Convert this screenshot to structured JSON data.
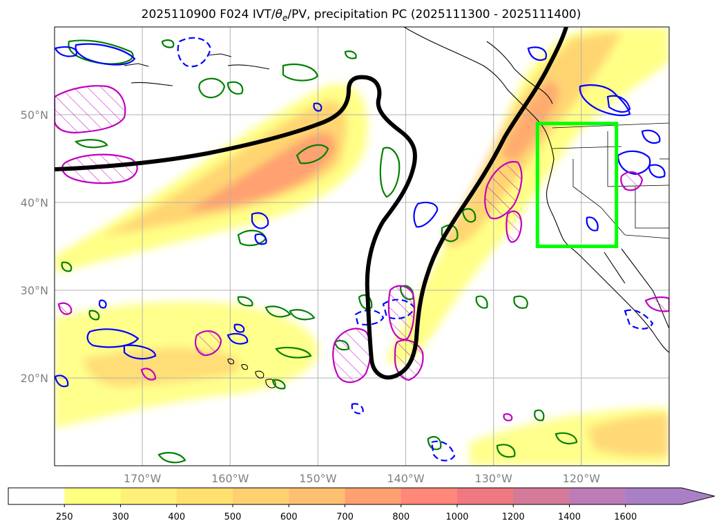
{
  "title": "2025110900 F024 IVT/θe/PV, precipitation PC (2025111300 - 2025111400)",
  "title_prefix": "2025110900 F024 IVT/",
  "title_theta": "θ",
  "title_theta_sub": "e",
  "title_suffix": "/PV, precipitation PC (2025111300 - 2025111400)",
  "map": {
    "lon_range": [
      -180,
      -110
    ],
    "lat_range": [
      10,
      60
    ],
    "x_ticks": [
      {
        "lon": -170,
        "label": "170°W"
      },
      {
        "lon": -160,
        "label": "160°W"
      },
      {
        "lon": -150,
        "label": "150°W"
      },
      {
        "lon": -140,
        "label": "140°W"
      },
      {
        "lon": -130,
        "label": "130°W"
      },
      {
        "lon": -120,
        "label": "120°W"
      }
    ],
    "y_ticks": [
      {
        "lat": 20,
        "label": "20°N"
      },
      {
        "lat": 30,
        "label": "30°N"
      },
      {
        "lat": 40,
        "label": "40°N"
      },
      {
        "lat": 50,
        "label": "50°N"
      }
    ],
    "gridlines": true,
    "highlight_box": {
      "lon": [
        -125,
        -116
      ],
      "lat": [
        35,
        49
      ],
      "color": "#00ff00"
    }
  },
  "colorbar": {
    "levels": [
      "250",
      "300",
      "400",
      "500",
      "600",
      "700",
      "800",
      "1000",
      "1200",
      "1400",
      "1600"
    ],
    "colors": [
      "#ffff80",
      "#fff07a",
      "#ffe070",
      "#ffd070",
      "#ffbf70",
      "#ffa070",
      "#ff8878",
      "#f07880",
      "#d57a98",
      "#bd7cb8",
      "#a980c8"
    ],
    "extend": "max"
  },
  "colors": {
    "ivt_low": "#ffff80",
    "ivt_mid": "#ffd070",
    "ivt_high": "#ff9070",
    "pv_contour": "#000000",
    "theta_cold": "#0000ff",
    "theta_warm": "#008000",
    "precip_pc": "#c000c0",
    "box": "#00ff00"
  }
}
